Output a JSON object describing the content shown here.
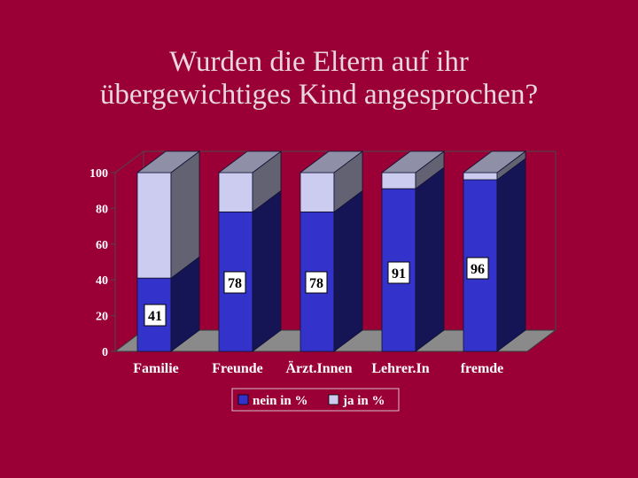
{
  "slide": {
    "title_line1": "Wurden die Eltern auf ihr",
    "title_line2": "übergewichtiges Kind  angesprochen?"
  },
  "colors": {
    "background": "#9a0035",
    "nein": "#3333cc",
    "ja": "#ccccf0"
  },
  "chart_data": {
    "type": "bar",
    "stacked": true,
    "three_d": true,
    "categories": [
      "Familie",
      "Freunde",
      "Ärzt.Innen",
      "Lehrer.In",
      "fremde"
    ],
    "series": [
      {
        "name": "nein in %",
        "values": [
          41,
          78,
          78,
          91,
          96
        ]
      },
      {
        "name": "ja in %",
        "values": [
          59,
          22,
          22,
          9,
          4
        ]
      }
    ],
    "data_labels": [
      "41",
      "78",
      "78",
      "91",
      "96"
    ],
    "yticks": [
      "0",
      "20",
      "40",
      "60",
      "80",
      "100"
    ],
    "ylim": [
      0,
      100
    ],
    "legend_position": "bottom"
  }
}
